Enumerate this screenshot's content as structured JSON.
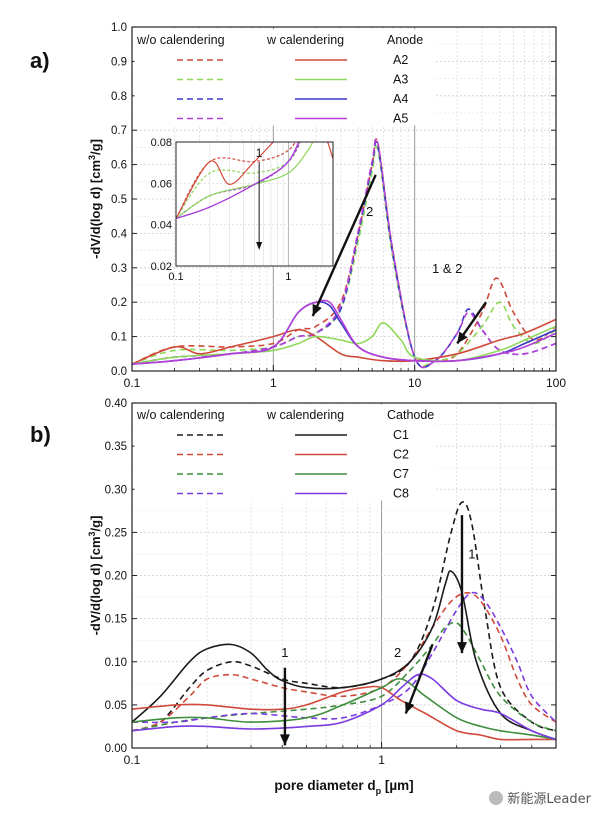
{
  "chart_data": [
    {
      "panel_label": "a)",
      "type": "line",
      "x_scale": "log",
      "xlim": [
        0.1,
        100
      ],
      "ylim": [
        0,
        1.0
      ],
      "x_ticks": [
        "0.1",
        "1",
        "10",
        "100"
      ],
      "y_ticks": [
        "0.0",
        "0.1",
        "0.2",
        "0.3",
        "0.4",
        "0.5",
        "0.6",
        "0.7",
        "0.8",
        "0.9",
        "1.0"
      ],
      "ylabel_parts": [
        "-dV/d(log d) [cm",
        "3",
        "/g]"
      ],
      "grid": true,
      "legend": {
        "position": "top-left",
        "headers": [
          "w/o calendering",
          "w calendering",
          "Anode"
        ],
        "entries": [
          "A2",
          "A3",
          "A4",
          "A5"
        ]
      },
      "annotations": [
        {
          "text": "2",
          "x": 4.8,
          "y": 0.45
        },
        {
          "text": "1 & 2",
          "x": 17,
          "y": 0.285
        }
      ],
      "series": [
        {
          "name": "A2",
          "color": "#d04a3a",
          "style": "dashed",
          "x": [
            0.1,
            0.2,
            0.5,
            1,
            1.5,
            2,
            3,
            4,
            5,
            5.5,
            7,
            10,
            14,
            20,
            30,
            38,
            50,
            70,
            100
          ],
          "y": [
            0.02,
            0.07,
            0.07,
            0.08,
            0.12,
            0.13,
            0.2,
            0.4,
            0.6,
            0.66,
            0.35,
            0.04,
            0.03,
            0.05,
            0.17,
            0.27,
            0.17,
            0.09,
            0.13
          ]
        },
        {
          "name": "A3",
          "color": "#8ed85a",
          "style": "dashed",
          "x": [
            0.1,
            0.2,
            0.5,
            1,
            1.5,
            2,
            3,
            4,
            5,
            5.5,
            7,
            10,
            14,
            20,
            30,
            40,
            50,
            70,
            100
          ],
          "y": [
            0.02,
            0.06,
            0.06,
            0.07,
            0.1,
            0.11,
            0.18,
            0.38,
            0.58,
            0.64,
            0.33,
            0.04,
            0.03,
            0.05,
            0.13,
            0.2,
            0.13,
            0.08,
            0.12
          ]
        },
        {
          "name": "A4",
          "color": "#3a38c8",
          "style": "dashed",
          "x": [
            0.1,
            0.2,
            0.5,
            1,
            1.5,
            2,
            3,
            4,
            5,
            5.5,
            7,
            10,
            14,
            20,
            24,
            30,
            40,
            60,
            100
          ],
          "y": [
            0.02,
            0.04,
            0.05,
            0.07,
            0.1,
            0.11,
            0.18,
            0.4,
            0.6,
            0.65,
            0.34,
            0.04,
            0.03,
            0.11,
            0.18,
            0.12,
            0.06,
            0.05,
            0.08
          ]
        },
        {
          "name": "A5",
          "color": "#b540d8",
          "style": "dashed",
          "x": [
            0.1,
            0.2,
            0.5,
            1,
            1.5,
            2,
            3,
            4,
            5,
            5.5,
            7,
            10,
            14,
            20,
            24,
            30,
            40,
            60,
            100
          ],
          "y": [
            0.02,
            0.04,
            0.05,
            0.07,
            0.1,
            0.11,
            0.19,
            0.41,
            0.61,
            0.66,
            0.35,
            0.04,
            0.03,
            0.11,
            0.17,
            0.12,
            0.06,
            0.05,
            0.08
          ]
        },
        {
          "name": "A2",
          "color": "#d04a3a",
          "style": "solid",
          "x": [
            0.1,
            0.2,
            0.3,
            0.5,
            1,
            1.5,
            2,
            3,
            4,
            6,
            10,
            20,
            40,
            60,
            100
          ],
          "y": [
            0.02,
            0.07,
            0.05,
            0.07,
            0.1,
            0.12,
            0.1,
            0.05,
            0.04,
            0.03,
            0.03,
            0.05,
            0.09,
            0.11,
            0.15
          ]
        },
        {
          "name": "A3",
          "color": "#8ed85a",
          "style": "solid",
          "x": [
            0.1,
            0.2,
            0.5,
            1,
            1.5,
            2,
            3,
            4,
            5,
            6,
            8,
            10,
            20,
            40,
            60,
            100
          ],
          "y": [
            0.02,
            0.04,
            0.05,
            0.06,
            0.08,
            0.1,
            0.09,
            0.08,
            0.1,
            0.14,
            0.09,
            0.04,
            0.03,
            0.06,
            0.09,
            0.13
          ]
        },
        {
          "name": "A4",
          "color": "#3a38c8",
          "style": "solid",
          "x": [
            0.1,
            0.2,
            0.5,
            1,
            1.5,
            2,
            2.5,
            3,
            4,
            6,
            10,
            20,
            40,
            60,
            100
          ],
          "y": [
            0.02,
            0.03,
            0.05,
            0.07,
            0.17,
            0.2,
            0.19,
            0.14,
            0.07,
            0.04,
            0.03,
            0.03,
            0.05,
            0.08,
            0.12
          ]
        },
        {
          "name": "A5",
          "color": "#b540d8",
          "style": "solid",
          "x": [
            0.1,
            0.2,
            0.5,
            1,
            1.5,
            2,
            2.5,
            3,
            4,
            6,
            10,
            20,
            40,
            60,
            100
          ],
          "y": [
            0.02,
            0.03,
            0.05,
            0.07,
            0.17,
            0.2,
            0.2,
            0.15,
            0.07,
            0.04,
            0.03,
            0.03,
            0.05,
            0.07,
            0.11
          ]
        }
      ],
      "inset": {
        "x_scale": "log",
        "xlim": [
          0.1,
          2.5
        ],
        "ylim": [
          0.02,
          0.08
        ],
        "x_ticks": [
          "0.1",
          "1"
        ],
        "y_ticks": [
          "0.02",
          "0.04",
          "0.06",
          "0.08"
        ],
        "annotation": "1"
      }
    },
    {
      "panel_label": "b)",
      "type": "line",
      "x_scale": "log",
      "xlim": [
        0.1,
        5
      ],
      "ylim": [
        0,
        0.4
      ],
      "x_ticks": [
        "0.1",
        "1"
      ],
      "y_ticks": [
        "0.00",
        "0.05",
        "0.10",
        "0.15",
        "0.20",
        "0.25",
        "0.30",
        "0.35",
        "0.40"
      ],
      "ylabel_parts": [
        "-dV/d(log d) [cm",
        "3",
        "/g]"
      ],
      "xlabel_parts": [
        "pore diameter d",
        "p",
        " [µm]"
      ],
      "grid": true,
      "legend": {
        "position": "top-left",
        "headers": [
          "w/o calendering",
          "w calendering",
          "Cathode"
        ],
        "entries": [
          "C1",
          "C2",
          "C7",
          "C8"
        ]
      },
      "annotations": [
        {
          "text": "1",
          "x": 0.41,
          "y": 0.1
        },
        {
          "text": "2",
          "x": 1.16,
          "y": 0.1
        },
        {
          "text": "1",
          "x": 2.3,
          "y": 0.22
        }
      ],
      "series": [
        {
          "name": "C1",
          "color": "#1a1a1a",
          "style": "dashed",
          "x": [
            0.1,
            0.13,
            0.17,
            0.2,
            0.25,
            0.3,
            0.4,
            0.5,
            0.7,
            1,
            1.3,
            1.6,
            1.9,
            2.1,
            2.3,
            2.6,
            3,
            4,
            5
          ],
          "y": [
            0.02,
            0.03,
            0.07,
            0.09,
            0.1,
            0.095,
            0.08,
            0.075,
            0.07,
            0.08,
            0.1,
            0.16,
            0.25,
            0.285,
            0.26,
            0.16,
            0.07,
            0.03,
            0.02
          ]
        },
        {
          "name": "C2",
          "color": "#d04a3a",
          "style": "dashed",
          "x": [
            0.1,
            0.13,
            0.17,
            0.2,
            0.25,
            0.3,
            0.4,
            0.5,
            0.7,
            1,
            1.3,
            1.6,
            1.9,
            2.2,
            2.5,
            3,
            3.5,
            4,
            5
          ],
          "y": [
            0.02,
            0.03,
            0.06,
            0.08,
            0.085,
            0.08,
            0.07,
            0.065,
            0.06,
            0.07,
            0.1,
            0.14,
            0.17,
            0.18,
            0.17,
            0.13,
            0.08,
            0.05,
            0.03
          ]
        },
        {
          "name": "C7",
          "color": "#3e8e3e",
          "style": "dashed",
          "x": [
            0.1,
            0.15,
            0.2,
            0.3,
            0.5,
            0.7,
            1,
            1.3,
            1.6,
            1.8,
            2,
            2.2,
            2.5,
            3,
            4,
            5
          ],
          "y": [
            0.02,
            0.03,
            0.035,
            0.04,
            0.045,
            0.05,
            0.06,
            0.09,
            0.12,
            0.14,
            0.145,
            0.13,
            0.1,
            0.06,
            0.03,
            0.02
          ]
        },
        {
          "name": "C8",
          "color": "#7a3be0",
          "style": "dashed",
          "x": [
            0.1,
            0.15,
            0.2,
            0.3,
            0.5,
            0.7,
            1,
            1.3,
            1.6,
            2,
            2.3,
            2.6,
            3,
            3.5,
            4,
            5
          ],
          "y": [
            0.03,
            0.03,
            0.035,
            0.04,
            0.035,
            0.035,
            0.05,
            0.07,
            0.11,
            0.16,
            0.18,
            0.17,
            0.14,
            0.1,
            0.06,
            0.03
          ]
        },
        {
          "name": "C1",
          "color": "#1a1a1a",
          "style": "solid",
          "x": [
            0.1,
            0.13,
            0.17,
            0.2,
            0.25,
            0.3,
            0.35,
            0.4,
            0.5,
            0.7,
            1,
            1.3,
            1.6,
            1.8,
            1.9,
            2.1,
            2.4,
            3,
            4,
            5
          ],
          "y": [
            0.03,
            0.06,
            0.1,
            0.115,
            0.12,
            0.11,
            0.09,
            0.078,
            0.07,
            0.07,
            0.08,
            0.1,
            0.14,
            0.19,
            0.205,
            0.18,
            0.1,
            0.04,
            0.02,
            0.01
          ]
        },
        {
          "name": "C2",
          "color": "#d04a3a",
          "style": "solid",
          "x": [
            0.1,
            0.15,
            0.2,
            0.3,
            0.4,
            0.5,
            0.7,
            0.85,
            1,
            1.2,
            1.5,
            2,
            2.5,
            3,
            4,
            5
          ],
          "y": [
            0.045,
            0.05,
            0.05,
            0.045,
            0.045,
            0.05,
            0.065,
            0.07,
            0.07,
            0.055,
            0.04,
            0.02,
            0.015,
            0.01,
            0.01,
            0.01
          ]
        },
        {
          "name": "C7",
          "color": "#3e8e3e",
          "style": "solid",
          "x": [
            0.1,
            0.15,
            0.2,
            0.3,
            0.5,
            0.7,
            1,
            1.2,
            1.5,
            2,
            2.5,
            3,
            4,
            5
          ],
          "y": [
            0.03,
            0.035,
            0.035,
            0.03,
            0.035,
            0.05,
            0.07,
            0.08,
            0.06,
            0.035,
            0.025,
            0.02,
            0.015,
            0.01
          ]
        },
        {
          "name": "C8",
          "color": "#7a3be0",
          "style": "solid",
          "x": [
            0.1,
            0.15,
            0.2,
            0.3,
            0.5,
            0.7,
            1,
            1.2,
            1.4,
            1.6,
            2,
            2.5,
            3,
            4,
            5
          ],
          "y": [
            0.02,
            0.025,
            0.025,
            0.022,
            0.025,
            0.03,
            0.05,
            0.07,
            0.085,
            0.08,
            0.055,
            0.045,
            0.04,
            0.02,
            0.01
          ]
        }
      ]
    }
  ],
  "watermark": {
    "text": "新能源Leader",
    "icon": "wechat-icon"
  }
}
